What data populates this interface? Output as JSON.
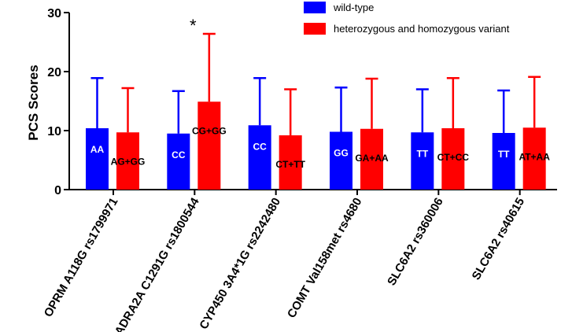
{
  "chart_data": {
    "type": "bar",
    "title": "",
    "xlabel": "",
    "ylabel": "PCS Scores",
    "ylim": [
      0,
      30
    ],
    "yticks": [
      0,
      10,
      20,
      30
    ],
    "grid": false,
    "legend_position": "top-right",
    "categories": [
      "OPRM A118G rs1799971",
      "ADRA2A C1291G rs1800544",
      "CYP450 3A4*1G rs2242480",
      "COMT Val158met rs4680",
      "SLC6A2 rs360006",
      "SLC6A2 rs40615"
    ],
    "series": [
      {
        "name": "wild-type",
        "color": "#0000ff",
        "values": [
          10.4,
          9.5,
          10.9,
          9.8,
          9.7,
          9.6
        ],
        "error_upper": [
          18.9,
          16.7,
          18.9,
          17.3,
          17.0,
          16.8
        ],
        "bar_labels": [
          "AA",
          "CC",
          "CC",
          "GG",
          "TT",
          "TT"
        ],
        "label_color": "#ffffff"
      },
      {
        "name": "heterozygous and homozygous variant",
        "color": "#ff0000",
        "values": [
          9.7,
          14.9,
          9.2,
          10.3,
          10.4,
          10.5
        ],
        "error_upper": [
          17.2,
          26.4,
          17.0,
          18.8,
          18.9,
          19.1
        ],
        "bar_labels": [
          "AG+GG",
          "CG+GG",
          "CT+TT",
          "GA+AA",
          "CT+CC",
          "AT+AA"
        ],
        "label_color": "#000000"
      }
    ],
    "annotations": [
      {
        "text": "*",
        "category_index": 1,
        "series_index": 1
      }
    ]
  }
}
